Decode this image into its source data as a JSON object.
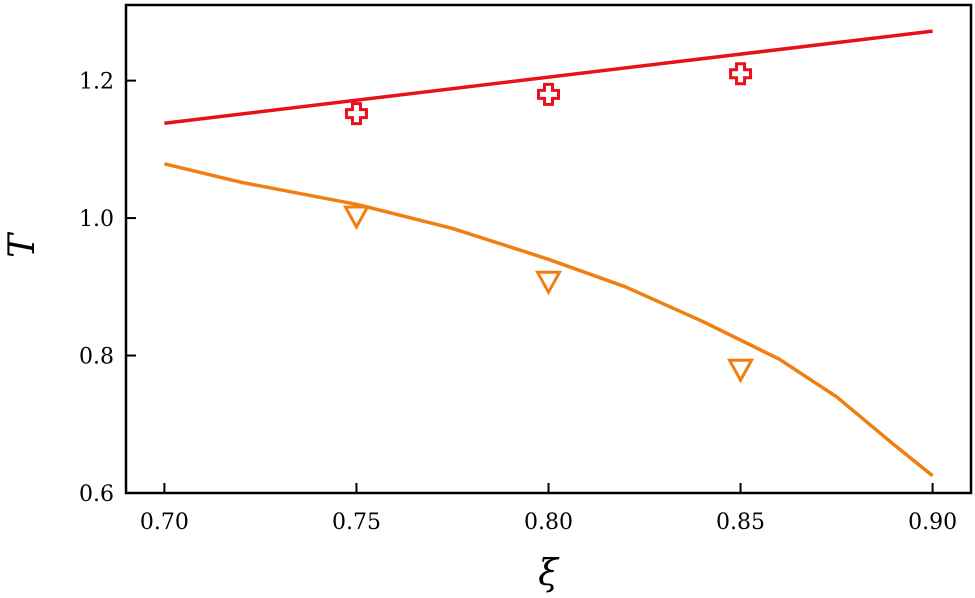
{
  "chart_data": {
    "type": "line",
    "xlabel": "ξ",
    "ylabel": "T",
    "xlim": [
      0.69,
      0.91
    ],
    "ylim": [
      0.6,
      1.31
    ],
    "x_ticks": [
      0.7,
      0.75,
      0.8,
      0.85,
      0.9
    ],
    "x_tick_labels": [
      "0.70",
      "0.75",
      "0.80",
      "0.85",
      "0.90"
    ],
    "y_ticks": [
      0.6,
      0.8,
      1.0,
      1.2
    ],
    "y_tick_labels": [
      "0.6",
      "0.8",
      "1.0",
      "1.2"
    ],
    "grid": false,
    "series": [
      {
        "kind": "line",
        "color": "#e8111a",
        "x": [
          0.7,
          0.9
        ],
        "y": [
          1.138,
          1.272
        ]
      },
      {
        "kind": "line",
        "color": "#f07f12",
        "x": [
          0.7,
          0.72,
          0.75,
          0.775,
          0.8,
          0.82,
          0.84,
          0.86,
          0.875,
          0.89,
          0.9
        ],
        "y": [
          1.079,
          1.052,
          1.02,
          0.985,
          0.94,
          0.9,
          0.85,
          0.795,
          0.74,
          0.67,
          0.625
        ]
      },
      {
        "kind": "scatter",
        "marker": "plus",
        "color": "#e8111a",
        "x": [
          0.75,
          0.8,
          0.85
        ],
        "y": [
          1.152,
          1.18,
          1.21
        ]
      },
      {
        "kind": "scatter",
        "marker": "triangle-down",
        "color": "#f07f12",
        "x": [
          0.75,
          0.8,
          0.85
        ],
        "y": [
          1.003,
          0.908,
          0.78
        ]
      }
    ]
  }
}
